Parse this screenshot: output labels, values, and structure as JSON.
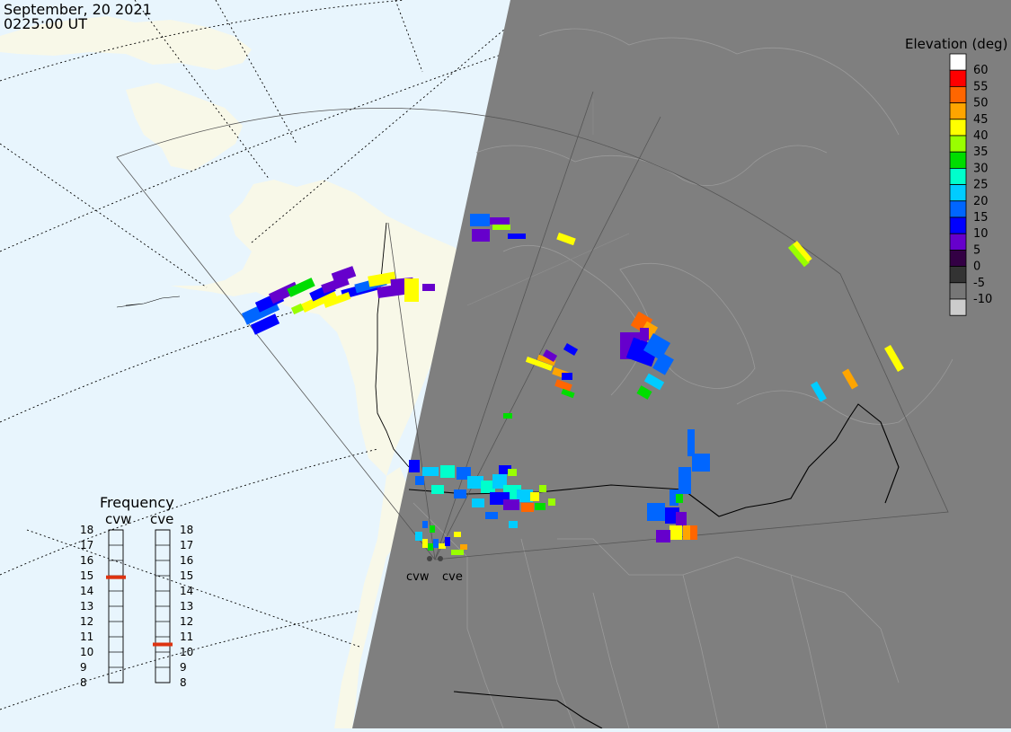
{
  "header": {
    "date": "September, 20 2021",
    "time": "0225:00 UT"
  },
  "legend": {
    "title": "Elevation (deg)",
    "entries": [
      {
        "label": "60",
        "color": "#ffffff"
      },
      {
        "label": "55",
        "color": "#ff0000"
      },
      {
        "label": "50",
        "color": "#ff6600"
      },
      {
        "label": "45",
        "color": "#ffa500"
      },
      {
        "label": "40",
        "color": "#ffff00"
      },
      {
        "label": "35",
        "color": "#99ff00"
      },
      {
        "label": "30",
        "color": "#00dd00"
      },
      {
        "label": "25",
        "color": "#00ffcc"
      },
      {
        "label": "20",
        "color": "#00ccff"
      },
      {
        "label": "15",
        "color": "#0066ff"
      },
      {
        "label": "10",
        "color": "#0000ff"
      },
      {
        "label": "5",
        "color": "#6600cc"
      },
      {
        "label": "0",
        "color": "#330044"
      },
      {
        "label": "-5",
        "color": "#333333"
      },
      {
        "label": "-10",
        "color": "#777777"
      },
      {
        "label": "",
        "color": "#cccccc"
      }
    ]
  },
  "frequency": {
    "title": "Frequency",
    "radars": [
      {
        "name": "cvw",
        "value": 14.9
      },
      {
        "name": "cve",
        "value": 10.5
      }
    ],
    "ticks": [
      "18",
      "17",
      "16",
      "15",
      "14",
      "13",
      "12",
      "11",
      "10",
      "9",
      "8"
    ],
    "marker_color": "#dd3311"
  },
  "radar_sites": [
    {
      "name": "cvw"
    },
    {
      "name": "cve"
    }
  ],
  "colors": {
    "ocean": "#e8f5fd",
    "land_day": "#f8f8e8",
    "night": "#7f7f7f",
    "border_day": "#000000",
    "border_night": "#9a9a9a"
  }
}
